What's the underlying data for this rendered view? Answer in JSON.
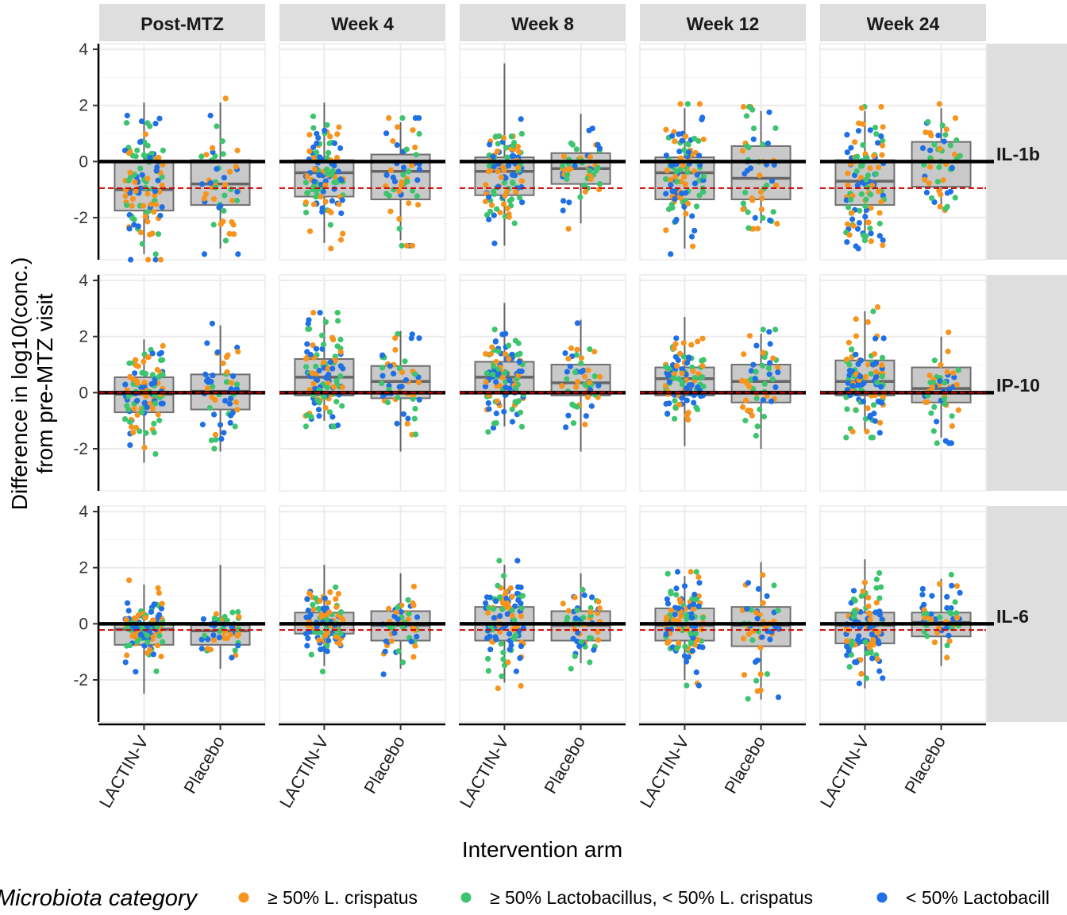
{
  "chart_data": {
    "type": "box+jitter",
    "facets": {
      "columns": [
        "Post-MTZ",
        "Week 4",
        "Week 8",
        "Week 12",
        "Week 24"
      ],
      "rows": [
        "IL-1b",
        "IP-10",
        "IL-6"
      ]
    },
    "categories": [
      "LACTIN-V",
      "Placebo"
    ],
    "xlabel": "Intervention arm",
    "ylabel_lines": [
      "Difference in log10(conc.)",
      "from pre-MTZ visit"
    ],
    "ylim": [
      -3.5,
      4.2
    ],
    "yticks": [
      -2,
      0,
      2,
      4
    ],
    "ytick_labels": [
      "-2",
      "0",
      "2",
      "4"
    ],
    "reference_line": {
      "y": 0,
      "color": "#000000"
    },
    "row_reference": [
      {
        "row": "IL-1b",
        "y": -0.95,
        "color": "#cc0000",
        "style": "dashed"
      },
      {
        "row": "IP-10",
        "y": 0.0,
        "color": "#cc0000",
        "style": "dashed"
      },
      {
        "row": "IL-6",
        "y": -0.22,
        "color": "#cc0000",
        "style": "dashed"
      }
    ],
    "legend": {
      "title": "Microbiota category",
      "position": "bottom",
      "entries": [
        {
          "label": "≥ 50% L. crispatus",
          "color": "#F7941D"
        },
        {
          "label": "≥ 50% Lactobacillus, < 50% L. crispatus",
          "color": "#3DC46E"
        },
        {
          "label": "< 50% Lactobacill",
          "color": "#1F6FE5"
        }
      ]
    },
    "boxes": {
      "IL-1b": {
        "Post-MTZ": {
          "LACTIN-V": [
            -3.3,
            -1.75,
            -1.0,
            0.0,
            2.1
          ],
          "Placebo": [
            -3.1,
            -1.55,
            -0.8,
            0.05,
            2.1
          ]
        },
        "Week 4": {
          "LACTIN-V": [
            -2.9,
            -1.25,
            -0.4,
            0.05,
            2.1
          ],
          "Placebo": [
            -2.8,
            -1.35,
            -0.35,
            0.25,
            1.4
          ]
        },
        "Week 8": {
          "LACTIN-V": [
            -3.0,
            -1.2,
            -0.35,
            0.15,
            3.5
          ],
          "Placebo": [
            -2.2,
            -0.8,
            -0.25,
            0.3,
            1.7
          ]
        },
        "Week 12": {
          "LACTIN-V": [
            -3.1,
            -1.35,
            -0.4,
            0.15,
            1.9
          ],
          "Placebo": [
            -2.2,
            -1.35,
            -0.6,
            0.55,
            1.8
          ]
        },
        "Week 24": {
          "LACTIN-V": [
            -2.9,
            -1.55,
            -0.7,
            0.05,
            1.8
          ],
          "Placebo": [
            -1.7,
            -0.9,
            0.0,
            0.7,
            1.9
          ]
        }
      },
      "IP-10": {
        "Post-MTZ": {
          "LACTIN-V": [
            -2.5,
            -0.7,
            -0.05,
            0.55,
            1.9
          ],
          "Placebo": [
            -2.1,
            -0.6,
            0.05,
            0.65,
            2.4
          ]
        },
        "Week 4": {
          "LACTIN-V": [
            -1.0,
            -0.1,
            0.55,
            1.2,
            2.7
          ],
          "Placebo": [
            -2.1,
            -0.2,
            0.4,
            0.95,
            2.2
          ]
        },
        "Week 8": {
          "LACTIN-V": [
            -1.2,
            0.0,
            0.55,
            1.1,
            3.2
          ],
          "Placebo": [
            -2.1,
            -0.1,
            0.35,
            1.0,
            2.6
          ]
        },
        "Week 12": {
          "LACTIN-V": [
            -1.9,
            -0.1,
            0.5,
            0.9,
            2.7
          ],
          "Placebo": [
            -2.0,
            -0.35,
            0.4,
            1.0,
            2.1
          ]
        },
        "Week 24": {
          "LACTIN-V": [
            -1.4,
            -0.1,
            0.4,
            1.15,
            2.9
          ],
          "Placebo": [
            -1.6,
            -0.35,
            0.15,
            0.9,
            2.0
          ]
        }
      },
      "IL-6": {
        "Post-MTZ": {
          "LACTIN-V": [
            -2.5,
            -0.75,
            -0.2,
            0.0,
            1.4
          ],
          "Placebo": [
            -1.6,
            -0.75,
            -0.25,
            -0.05,
            2.1
          ]
        },
        "Week 4": {
          "LACTIN-V": [
            -1.5,
            -0.35,
            0.0,
            0.4,
            2.1
          ],
          "Placebo": [
            -1.6,
            -0.6,
            -0.05,
            0.45,
            1.8
          ]
        },
        "Week 8": {
          "LACTIN-V": [
            -2.1,
            -0.6,
            0.0,
            0.6,
            2.1
          ],
          "Placebo": [
            -1.4,
            -0.6,
            -0.05,
            0.45,
            1.8
          ]
        },
        "Week 12": {
          "LACTIN-V": [
            -2.0,
            -0.6,
            -0.05,
            0.55,
            1.7
          ],
          "Placebo": [
            -2.7,
            -0.8,
            -0.05,
            0.6,
            2.2
          ]
        },
        "Week 24": {
          "LACTIN-V": [
            -2.3,
            -0.7,
            -0.05,
            0.4,
            2.3
          ],
          "Placebo": [
            -1.5,
            -0.45,
            0.05,
            0.4,
            1.6
          ]
        }
      }
    },
    "box_format": [
      "min",
      "q1",
      "median",
      "q3",
      "max"
    ],
    "points_per_group": {
      "LACTIN-V": 110,
      "Placebo": 50
    }
  }
}
